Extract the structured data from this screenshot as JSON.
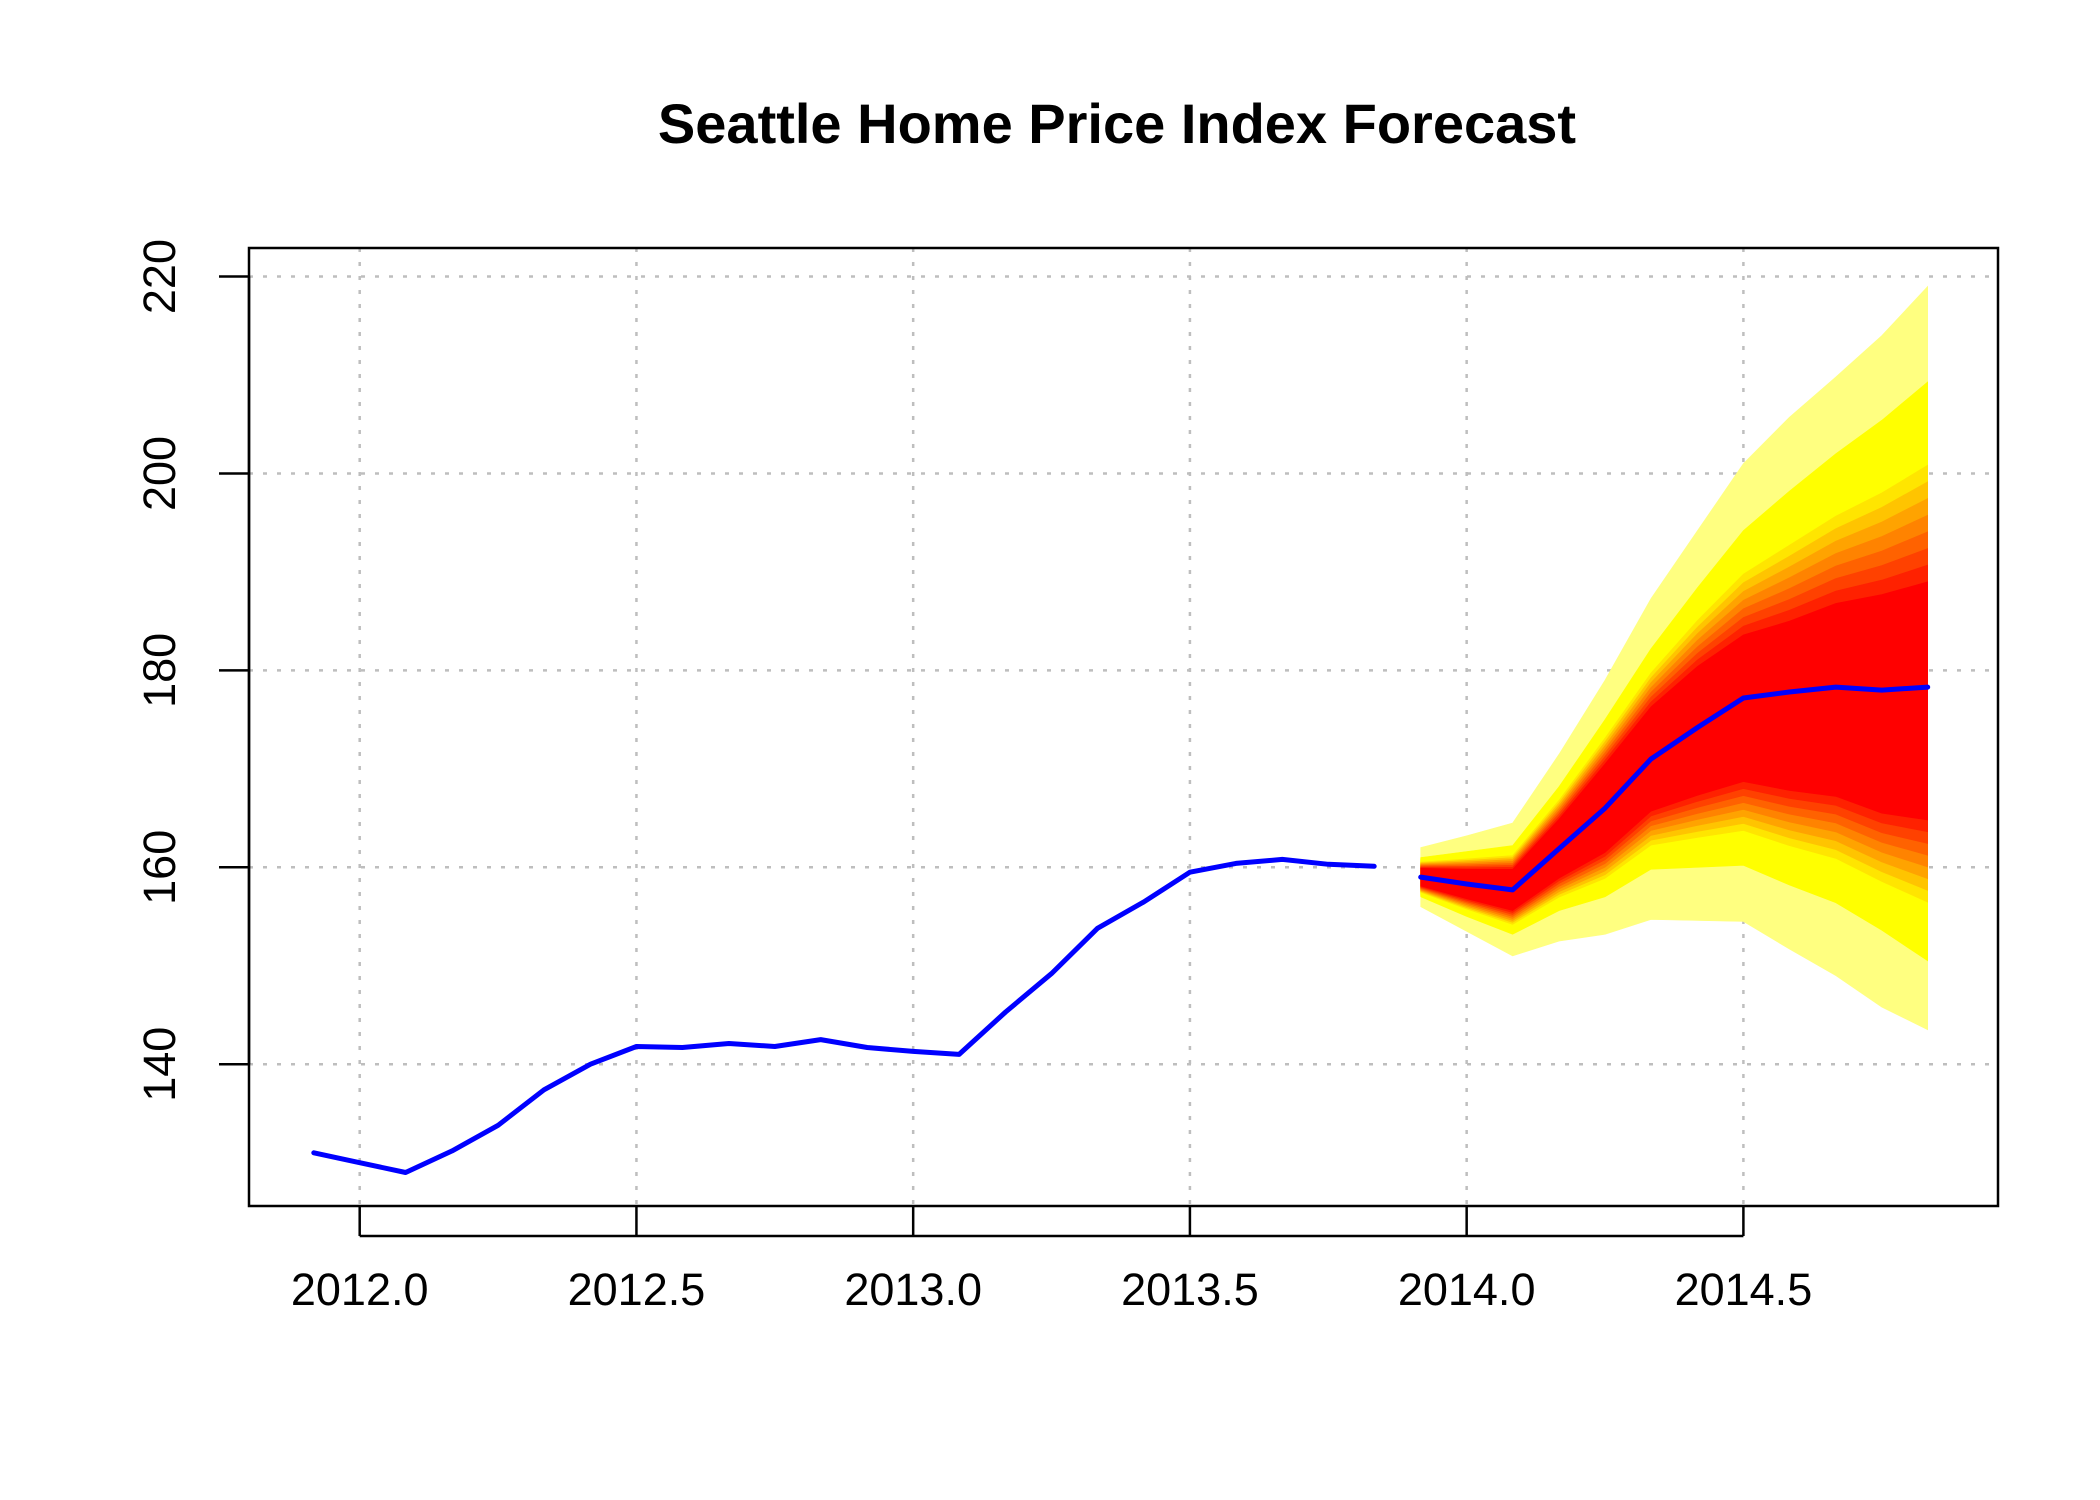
{
  "chart_data": {
    "type": "area",
    "title": "Seattle Home Price Index Forecast",
    "xlabel": "",
    "ylabel": "",
    "xlim": [
      2011.8,
      2014.96
    ],
    "ylim": [
      125.6,
      222.9
    ],
    "x_ticks": [
      "2012.0",
      "2012.5",
      "2013.0",
      "2013.5",
      "2014.0",
      "2014.5"
    ],
    "y_ticks": [
      "140",
      "160",
      "180",
      "200",
      "220"
    ],
    "grid": true,
    "colors": {
      "line": "#0000ff",
      "fan_outer": "#ffff80",
      "fan_mid": "#ffff00",
      "fan_inner": "#ff0000",
      "grid": "#bebebe"
    },
    "history": {
      "x": [
        2011.917,
        2012.0,
        2012.083,
        2012.167,
        2012.25,
        2012.333,
        2012.417,
        2012.5,
        2012.583,
        2012.667,
        2012.75,
        2012.833,
        2012.917,
        2013.0,
        2013.083,
        2013.167,
        2013.25,
        2013.333,
        2013.417,
        2013.5,
        2013.583,
        2013.667,
        2013.75,
        2013.833
      ],
      "y": [
        131.0,
        130.0,
        129.0,
        131.2,
        133.8,
        137.4,
        140.0,
        141.8,
        141.7,
        142.1,
        141.8,
        142.5,
        141.7,
        141.3,
        141.0,
        145.3,
        149.2,
        153.8,
        156.5,
        159.5,
        160.4,
        160.8,
        160.3,
        160.1
      ]
    },
    "forecast": {
      "x": [
        2013.917,
        2014.0,
        2014.083,
        2014.167,
        2014.25,
        2014.333,
        2014.417,
        2014.5,
        2014.583,
        2014.667,
        2014.75,
        2014.833
      ],
      "mean": [
        159.0,
        158.3,
        157.7,
        161.9,
        166.0,
        171.0,
        174.2,
        177.2,
        177.8,
        178.3,
        178.0,
        178.3
      ],
      "bands": [
        {
          "level": "95%",
          "lower": [
            156.0,
            153.5,
            151.0,
            152.5,
            153.2,
            154.7,
            154.6,
            154.5,
            151.7,
            149.0,
            145.8,
            143.5
          ],
          "upper": [
            162.0,
            163.2,
            164.5,
            171.5,
            179.0,
            187.3,
            194.2,
            201.0,
            205.7,
            209.8,
            214.0,
            219.0
          ]
        },
        {
          "level": "80%",
          "lower": [
            157.0,
            155.0,
            153.2,
            155.6,
            157.0,
            159.8,
            160.0,
            160.2,
            158.2,
            156.4,
            153.6,
            150.5
          ],
          "upper": [
            161.0,
            161.6,
            162.2,
            168.2,
            175.0,
            182.2,
            188.4,
            194.2,
            198.2,
            202.0,
            205.4,
            209.3
          ]
        },
        {
          "level": "50%",
          "lower": [
            158.1,
            156.8,
            155.6,
            158.9,
            161.5,
            165.7,
            167.3,
            168.7,
            167.8,
            167.2,
            165.5,
            164.8
          ],
          "upper": [
            159.9,
            159.8,
            159.8,
            164.9,
            170.5,
            176.3,
            180.4,
            183.6,
            185.0,
            186.8,
            187.7,
            189.0
          ]
        }
      ]
    }
  }
}
